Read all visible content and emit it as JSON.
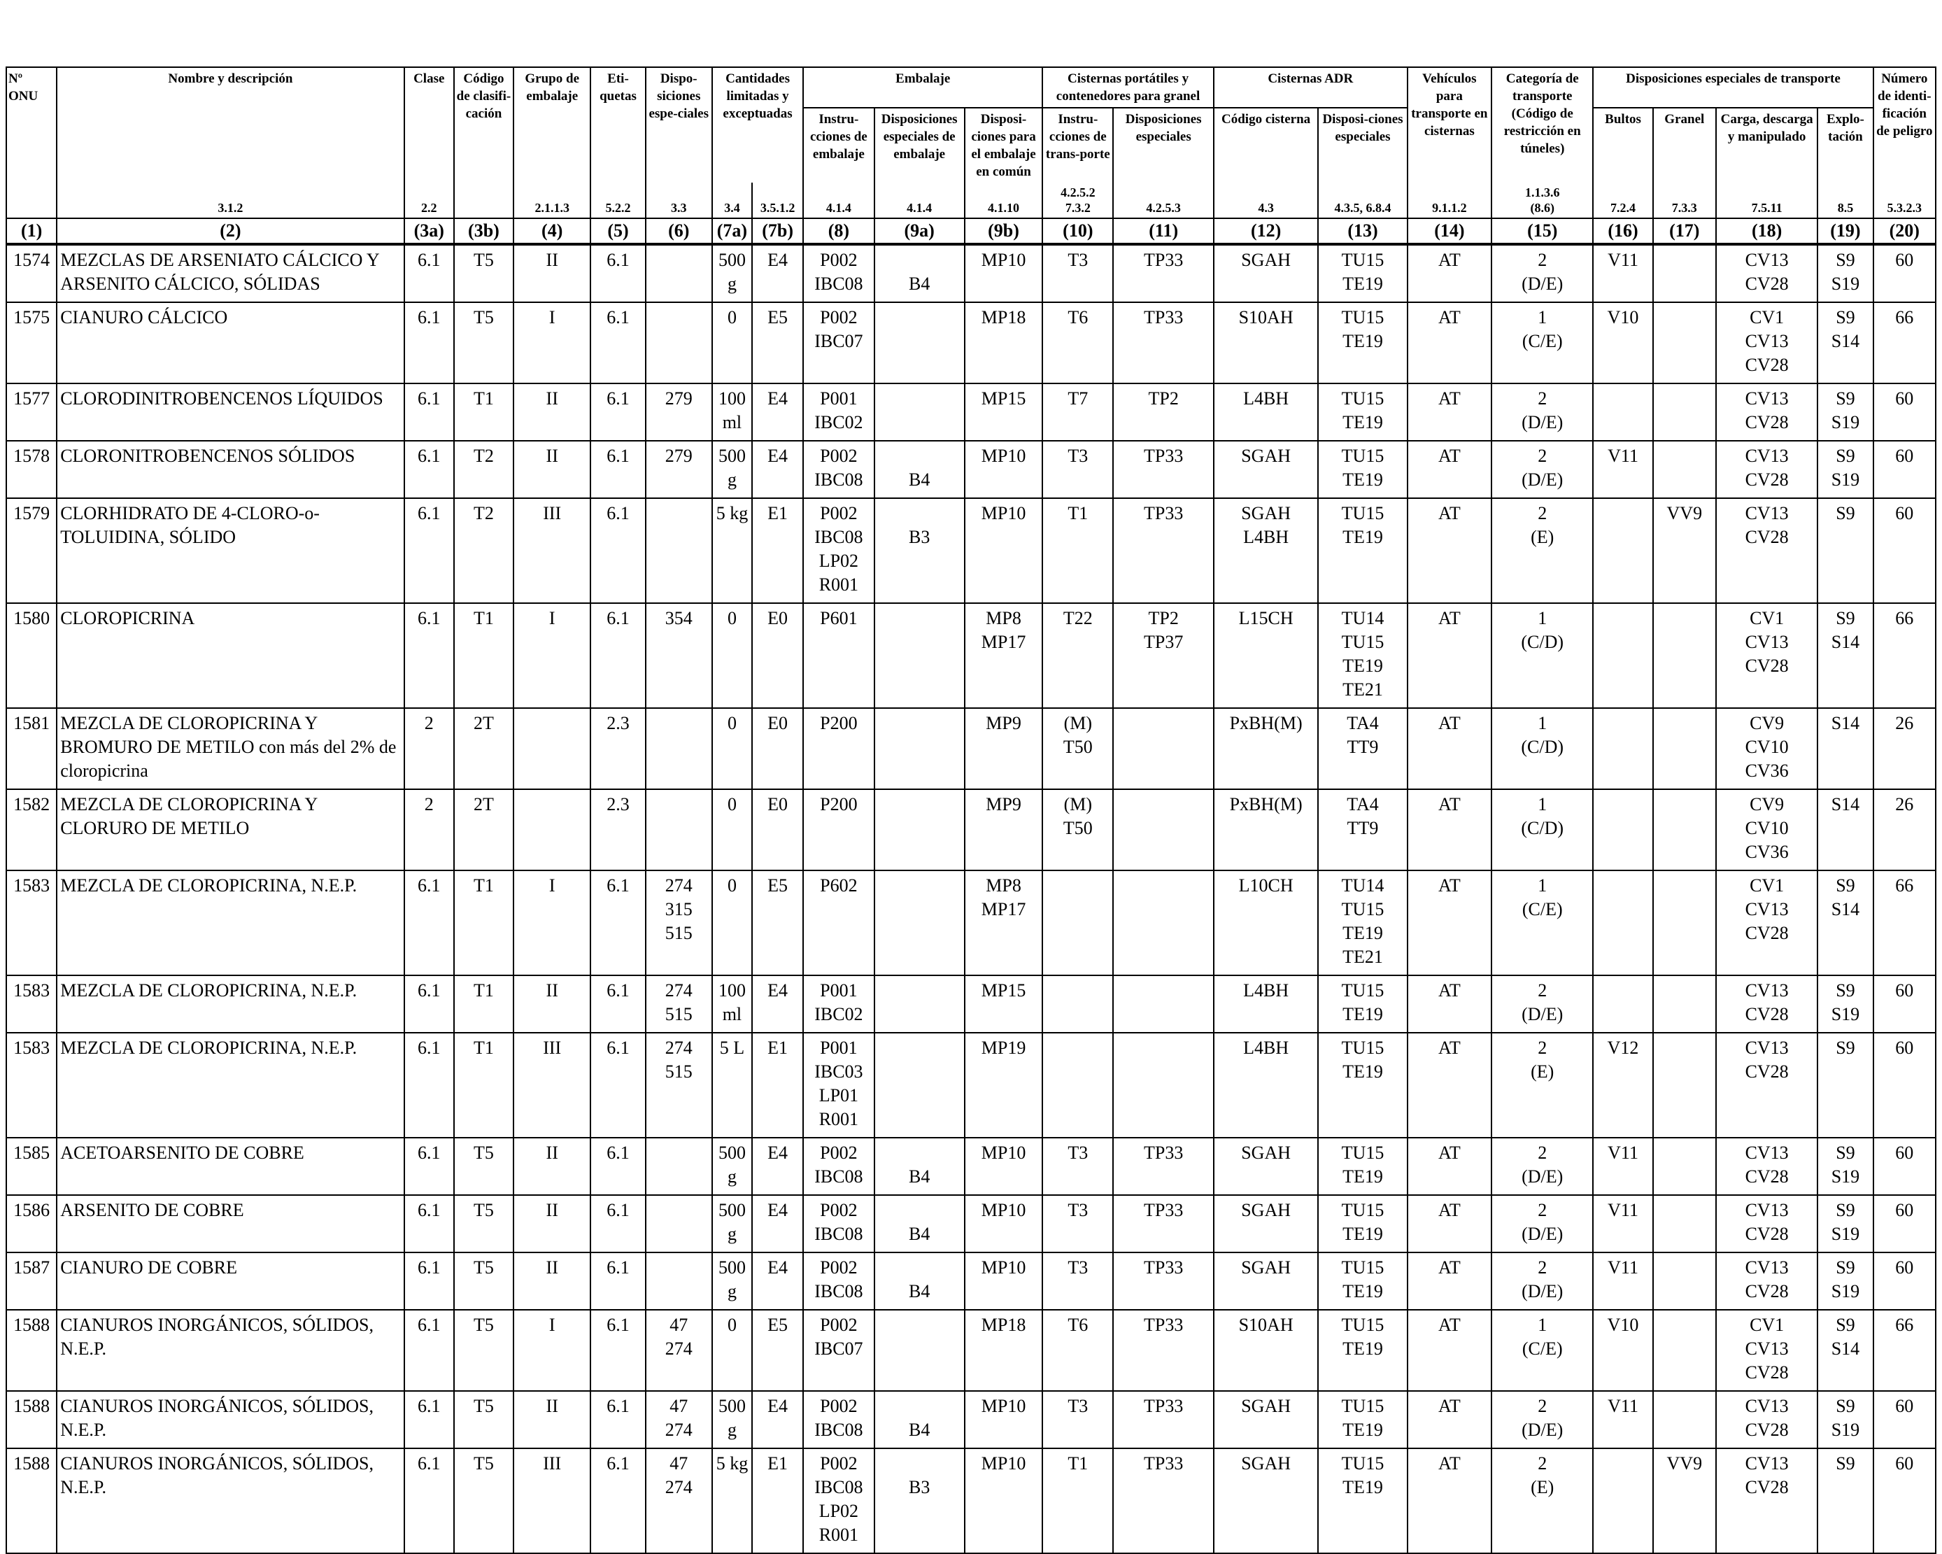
{
  "headers": {
    "c1": "Nº ONU",
    "c2": "Nombre y descripción",
    "c3a": "Clase",
    "c3b": "Código de clasifi-cación",
    "c4": "Grupo de embalaje",
    "c5": "Eti-quetas",
    "c6": "Dispo-siciones espe-ciales",
    "g7": "Cantidades limitadas y exceptuadas",
    "g89": "Embalaje",
    "c8": "Instru-cciones de embalaje",
    "c9a": "Disposiciones especiales de embalaje",
    "c9b": "Disposi-ciones para el embalaje en común",
    "g1011": "Cisternas portátiles y contenedores para granel",
    "c10": "Instru-cciones de trans-porte",
    "c11": "Disposiciones especiales",
    "g1213": "Cisternas ADR",
    "c12": "Código cisterna",
    "c13": "Disposi-ciones especiales",
    "c14": "Vehículos para transporte en cisternas",
    "c15": "Categoría de transporte (Código de restricción en túneles)",
    "g1619": "Disposiciones especiales de transporte",
    "c16": "Bultos",
    "c17": "Granel",
    "c18": "Carga, descarga y manipulado",
    "c19": "Explo-tación",
    "c20": "Número de identi-ficación de peligro"
  },
  "sections": [
    "",
    "3.1.2",
    "2.2",
    "",
    "2.1.1.3",
    "5.2.2",
    "3.3",
    "3.4",
    "3.5.1.2",
    "4.1.4",
    "4.1.4",
    "4.1.10",
    "4.2.5.2\n7.3.2",
    "4.2.5.3",
    "4.3",
    "4.3.5, 6.8.4",
    "9.1.1.2",
    "1.1.3.6\n(8.6)",
    "7.2.4",
    "7.3.3",
    "7.5.11",
    "8.5",
    "5.3.2.3"
  ],
  "column_numbers": [
    "(1)",
    "(2)",
    "(3a)",
    "(3b)",
    "(4)",
    "(5)",
    "(6)",
    "(7a)",
    "(7b)",
    "(8)",
    "(9a)",
    "(9b)",
    "(10)",
    "(11)",
    "(12)",
    "(13)",
    "(14)",
    "(15)",
    "(16)",
    "(17)",
    "(18)",
    "(19)",
    "(20)"
  ],
  "rows": [
    [
      "1574",
      "MEZCLAS DE ARSENIATO CÁLCICO Y ARSENITO CÁLCICO, SÓLIDAS",
      "6.1",
      "T5",
      "II",
      "6.1",
      "",
      "500\ng",
      "E4",
      "P002\nIBC08",
      "\nB4",
      "MP10",
      "T3",
      "TP33",
      "SGAH",
      "TU15\nTE19",
      "AT",
      "2\n(D/E)",
      "V11",
      "",
      "CV13\nCV28",
      "S9\nS19",
      "60"
    ],
    [
      "1575",
      "CIANURO CÁLCICO",
      "6.1",
      "T5",
      "I",
      "6.1",
      "",
      "0",
      "E5",
      "P002\nIBC07",
      "",
      "MP18",
      "T6",
      "TP33",
      "S10AH",
      "TU15\nTE19",
      "AT",
      "1\n(C/E)",
      "V10",
      "",
      "CV1\nCV13\nCV28",
      "S9\nS14",
      "66"
    ],
    [
      "1577",
      "CLORODINITROBENCENOS LÍQUIDOS",
      "6.1",
      "T1",
      "II",
      "6.1",
      "279",
      "100\nml",
      "E4",
      "P001\nIBC02",
      "",
      "MP15",
      "T7",
      "TP2",
      "L4BH",
      "TU15\nTE19",
      "AT",
      "2\n(D/E)",
      "",
      "",
      "CV13\nCV28",
      "S9\nS19",
      "60"
    ],
    [
      "1578",
      "CLORONITROBENCENOS SÓLIDOS",
      "6.1",
      "T2",
      "II",
      "6.1",
      "279",
      "500\ng",
      "E4",
      "P002\nIBC08",
      "\nB4",
      "MP10",
      "T3",
      "TP33",
      "SGAH",
      "TU15\nTE19",
      "AT",
      "2\n(D/E)",
      "V11",
      "",
      "CV13\nCV28",
      "S9\nS19",
      "60"
    ],
    [
      "1579",
      "CLORHIDRATO DE 4-CLORO-o-TOLUIDINA, SÓLIDO",
      "6.1",
      "T2",
      "III",
      "6.1",
      "",
      "5 kg",
      "E1",
      "P002\nIBC08\nLP02\nR001",
      "\nB3",
      "MP10",
      "T1",
      "TP33",
      "SGAH\nL4BH",
      "TU15\nTE19",
      "AT",
      "2\n(E)",
      "",
      "VV9",
      "CV13\nCV28",
      "S9",
      "60"
    ],
    [
      "1580",
      "CLOROPICRINA",
      "6.1",
      "T1",
      "I",
      "6.1",
      "354",
      "0",
      "E0",
      "P601",
      "",
      "MP8\nMP17",
      "T22",
      "TP2\nTP37",
      "L15CH",
      "TU14\nTU15\nTE19\nTE21",
      "AT",
      "1\n(C/D)",
      "",
      "",
      "CV1\nCV13\nCV28",
      "S9\nS14",
      "66"
    ],
    [
      "1581",
      "MEZCLA DE CLOROPICRINA Y BROMURO DE METILO con más del 2% de cloropicrina",
      "2",
      "2T",
      "",
      "2.3",
      "",
      "0",
      "E0",
      "P200",
      "",
      "MP9",
      "(M)\nT50",
      "",
      "PxBH(M)",
      "TA4\nTT9",
      "AT",
      "1\n(C/D)",
      "",
      "",
      "CV9\nCV10\nCV36",
      "S14",
      "26"
    ],
    [
      "1582",
      "MEZCLA DE CLOROPICRINA Y CLORURO DE METILO",
      "2",
      "2T",
      "",
      "2.3",
      "",
      "0",
      "E0",
      "P200",
      "",
      "MP9",
      "(M)\nT50",
      "",
      "PxBH(M)",
      "TA4\nTT9",
      "AT",
      "1\n(C/D)",
      "",
      "",
      "CV9\nCV10\nCV36",
      "S14",
      "26"
    ],
    [
      "1583",
      "MEZCLA DE CLOROPICRINA, N.E.P.",
      "6.1",
      "T1",
      "I",
      "6.1",
      "274\n315\n515",
      "0",
      "E5",
      "P602",
      "",
      "MP8\nMP17",
      "",
      "",
      "L10CH",
      "TU14\nTU15\nTE19\nTE21",
      "AT",
      "1\n(C/E)",
      "",
      "",
      "CV1\nCV13\nCV28",
      "S9\nS14",
      "66"
    ],
    [
      "1583",
      "MEZCLA DE CLOROPICRINA, N.E.P.",
      "6.1",
      "T1",
      "II",
      "6.1",
      "274\n515",
      "100\nml",
      "E4",
      "P001\nIBC02",
      "",
      "MP15",
      "",
      "",
      "L4BH",
      "TU15\nTE19",
      "AT",
      "2\n(D/E)",
      "",
      "",
      "CV13\nCV28",
      "S9\nS19",
      "60"
    ],
    [
      "1583",
      "MEZCLA DE CLOROPICRINA, N.E.P.",
      "6.1",
      "T1",
      "III",
      "6.1",
      "274\n515",
      "5 L",
      "E1",
      "P001\nIBC03\nLP01\nR001",
      "",
      "MP19",
      "",
      "",
      "L4BH",
      "TU15\nTE19",
      "AT",
      "2\n(E)",
      "V12",
      "",
      "CV13\nCV28",
      "S9",
      "60"
    ],
    [
      "1585",
      "ACETOARSENITO DE COBRE",
      "6.1",
      "T5",
      "II",
      "6.1",
      "",
      "500\ng",
      "E4",
      "P002\nIBC08",
      "\nB4",
      "MP10",
      "T3",
      "TP33",
      "SGAH",
      "TU15\nTE19",
      "AT",
      "2\n(D/E)",
      "V11",
      "",
      "CV13\nCV28",
      "S9\nS19",
      "60"
    ],
    [
      "1586",
      "ARSENITO DE COBRE",
      "6.1",
      "T5",
      "II",
      "6.1",
      "",
      "500\ng",
      "E4",
      "P002\nIBC08",
      "\nB4",
      "MP10",
      "T3",
      "TP33",
      "SGAH",
      "TU15\nTE19",
      "AT",
      "2\n(D/E)",
      "V11",
      "",
      "CV13\nCV28",
      "S9\nS19",
      "60"
    ],
    [
      "1587",
      "CIANURO DE COBRE",
      "6.1",
      "T5",
      "II",
      "6.1",
      "",
      "500\ng",
      "E4",
      "P002\nIBC08",
      "\nB4",
      "MP10",
      "T3",
      "TP33",
      "SGAH",
      "TU15\nTE19",
      "AT",
      "2\n(D/E)",
      "V11",
      "",
      "CV13\nCV28",
      "S9\nS19",
      "60"
    ],
    [
      "1588",
      "CIANUROS INORGÁNICOS, SÓLIDOS, N.E.P.",
      "6.1",
      "T5",
      "I",
      "6.1",
      "47\n274",
      "0",
      "E5",
      "P002\nIBC07",
      "",
      "MP18",
      "T6",
      "TP33",
      "S10AH",
      "TU15\nTE19",
      "AT",
      "1\n(C/E)",
      "V10",
      "",
      "CV1\nCV13\nCV28",
      "S9\nS14",
      "66"
    ],
    [
      "1588",
      "CIANUROS INORGÁNICOS, SÓLIDOS, N.E.P.",
      "6.1",
      "T5",
      "II",
      "6.1",
      "47\n274",
      "500\ng",
      "E4",
      "P002\nIBC08",
      "\nB4",
      "MP10",
      "T3",
      "TP33",
      "SGAH",
      "TU15\nTE19",
      "AT",
      "2\n(D/E)",
      "V11",
      "",
      "CV13\nCV28",
      "S9\nS19",
      "60"
    ],
    [
      "1588",
      "CIANUROS INORGÁNICOS, SÓLIDOS, N.E.P.",
      "6.1",
      "T5",
      "III",
      "6.1",
      "47\n274",
      "5 kg",
      "E1",
      "P002\nIBC08\nLP02\nR001",
      "\nB3",
      "MP10",
      "T1",
      "TP33",
      "SGAH",
      "TU15\nTE19",
      "AT",
      "2\n(E)",
      "",
      "VV9",
      "CV13\nCV28",
      "S9",
      "60"
    ]
  ]
}
